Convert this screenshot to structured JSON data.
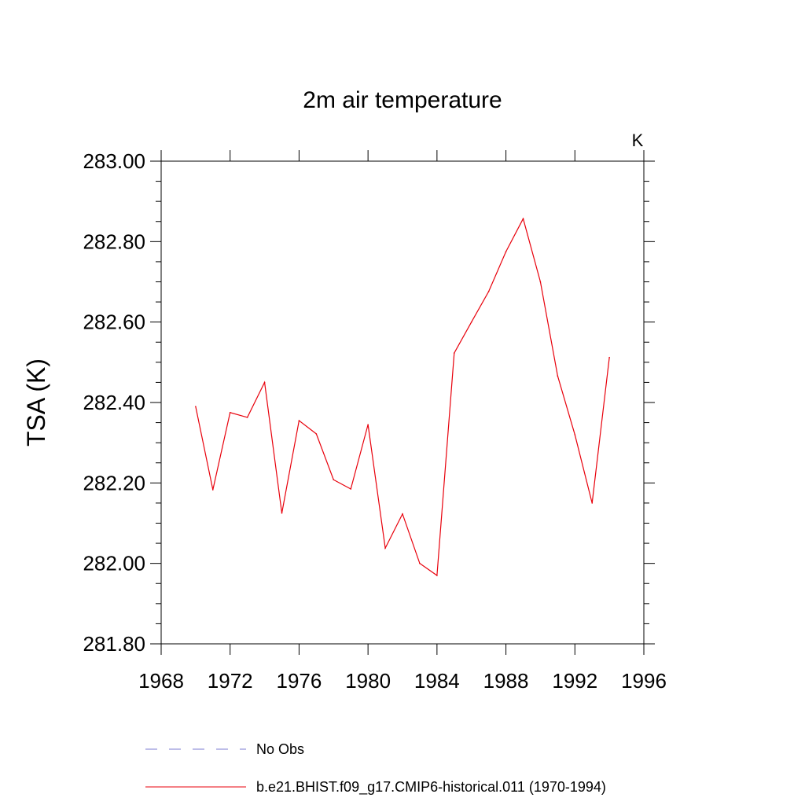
{
  "chart_data": {
    "type": "line",
    "title": "2m air temperature",
    "units_label": "K",
    "xlabel": "",
    "ylabel": "TSA  (K)",
    "xlim": [
      1968,
      1996
    ],
    "ylim": [
      281.8,
      283.0
    ],
    "x_ticks": [
      "1968",
      "1972",
      "1976",
      "1980",
      "1984",
      "1988",
      "1992",
      "1996"
    ],
    "y_ticks": [
      "281.80",
      "282.00",
      "282.20",
      "282.40",
      "282.60",
      "282.80",
      "283.00"
    ],
    "grid": false,
    "legend_position": "bottom",
    "series": [
      {
        "name": "b.e21.BHIST.f09_g17.CMIP6-historical.011 (1970-1994)",
        "color": "#e8000b",
        "style": "solid",
        "x": [
          1970,
          1971,
          1972,
          1973,
          1974,
          1975,
          1976,
          1977,
          1978,
          1979,
          1980,
          1981,
          1982,
          1983,
          1984,
          1985,
          1986,
          1987,
          1988,
          1989,
          1990,
          1991,
          1992,
          1993,
          1994
        ],
        "y": [
          282.39,
          282.183,
          282.375,
          282.363,
          282.45,
          282.125,
          282.355,
          282.322,
          282.208,
          282.185,
          282.345,
          282.038,
          282.123,
          282.0,
          281.97,
          282.523,
          282.6,
          282.676,
          282.775,
          282.857,
          282.7,
          282.466,
          282.32,
          282.15,
          282.512
        ]
      }
    ],
    "legend": [
      {
        "label": "No Obs",
        "color": "#7b7bd0",
        "style": "dashed"
      },
      {
        "label": "b.e21.BHIST.f09_g17.CMIP6-historical.011 (1970-1994)",
        "color": "#e8000b",
        "style": "solid"
      }
    ]
  }
}
